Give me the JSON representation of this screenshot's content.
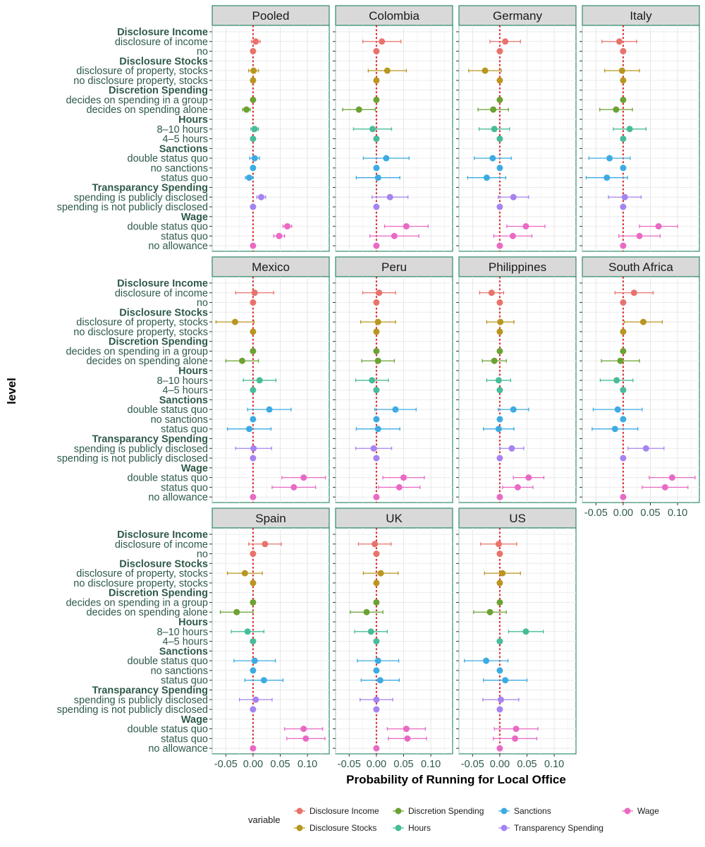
{
  "chart_data": {
    "type": "coefficient-dot-plot-faceted",
    "xlabel": "Probability of Running for Local Office",
    "ylabel": "level",
    "xlim": [
      -0.075,
      0.14
    ],
    "xticks": [
      -0.05,
      0.0,
      0.05,
      0.1
    ],
    "xtick_labels": [
      "-0.05",
      "0.00",
      "0.05",
      "0.10"
    ],
    "reference_line": 0,
    "legend_title": "variable",
    "groups": [
      {
        "name": "Disclosure Income",
        "color": "#E8736C",
        "levels": [
          "disclosure of income",
          "no"
        ]
      },
      {
        "name": "Disclosure Stocks",
        "color": "#B8961F",
        "levels": [
          "disclosure of property, stocks",
          "no disclosure property, stocks"
        ]
      },
      {
        "name": "Discretion Spending",
        "color": "#6BA233",
        "levels": [
          "decides on spending in a group",
          "decides on spending alone"
        ]
      },
      {
        "name": "Hours",
        "color": "#48BC99",
        "levels": [
          "8–10 hours",
          "4–5 hours"
        ]
      },
      {
        "name": "Sanctions",
        "color": "#3DABE2",
        "levels": [
          "double status quo",
          "no sanctions",
          "status quo"
        ]
      },
      {
        "name": "Transparancy Spending",
        "color": "#A683F0",
        "levels": [
          "spending is publicly disclosed",
          "spending is not publicly disclosed"
        ]
      },
      {
        "name": "Wage",
        "color": "#E96AC4",
        "levels": [
          "double status quo",
          "status quo",
          "no allowance"
        ]
      }
    ],
    "legend_labels": [
      "Disclosure Income",
      "Disclosure Stocks",
      "Discretion Spending",
      "Hours",
      "Sanctions",
      "Transparency Spending",
      "Wage"
    ],
    "facets": [
      {
        "name": "Pooled",
        "est": [
          [
            0.005,
            0
          ],
          [
            0.001,
            0
          ],
          [
            0,
            -0.012
          ],
          [
            0.003,
            0
          ],
          [
            0.003,
            0,
            -0.007
          ],
          [
            0.015,
            0
          ],
          [
            0.063,
            0.048,
            0
          ]
        ],
        "err": [
          [
            0.008,
            0
          ],
          [
            0.009,
            0
          ],
          [
            0,
            0.007
          ],
          [
            0.007,
            0
          ],
          [
            0.009,
            0,
            0.007
          ],
          [
            0.008,
            0
          ],
          [
            0.008,
            0.01,
            0
          ]
        ]
      },
      {
        "name": "Colombia",
        "est": [
          [
            0.01,
            0
          ],
          [
            0.02,
            0
          ],
          [
            0,
            -0.032
          ],
          [
            -0.007,
            0
          ],
          [
            0.018,
            0,
            0.003
          ],
          [
            0.025,
            0
          ],
          [
            0.055,
            0.033,
            0
          ]
        ],
        "err": [
          [
            0.035,
            0
          ],
          [
            0.035,
            0
          ],
          [
            0,
            0.03
          ],
          [
            0.035,
            0
          ],
          [
            0.042,
            0,
            0.04
          ],
          [
            0.033,
            0
          ],
          [
            0.04,
            0.045,
            0
          ]
        ]
      },
      {
        "name": "Germany",
        "est": [
          [
            0.01,
            0
          ],
          [
            -0.027,
            0
          ],
          [
            0,
            -0.012
          ],
          [
            -0.01,
            0
          ],
          [
            -0.013,
            0,
            -0.024
          ],
          [
            0.025,
            0
          ],
          [
            0.048,
            0.024,
            0
          ]
        ],
        "err": [
          [
            0.028,
            0
          ],
          [
            0.03,
            0
          ],
          [
            0,
            0.028
          ],
          [
            0.028,
            0
          ],
          [
            0.034,
            0,
            0.035
          ],
          [
            0.028,
            0
          ],
          [
            0.035,
            0.035,
            0
          ]
        ]
      },
      {
        "name": "Italy",
        "est": [
          [
            -0.007,
            0
          ],
          [
            -0.002,
            0
          ],
          [
            0,
            -0.013
          ],
          [
            0.012,
            0
          ],
          [
            -0.025,
            0,
            -0.03
          ],
          [
            0.003,
            0
          ],
          [
            0.065,
            0.03,
            0
          ]
        ],
        "err": [
          [
            0.032,
            0
          ],
          [
            0.032,
            0
          ],
          [
            0,
            0.03
          ],
          [
            0.03,
            0
          ],
          [
            0.038,
            0,
            0.038
          ],
          [
            0.03,
            0
          ],
          [
            0.035,
            0.038,
            0
          ]
        ]
      },
      {
        "name": "Mexico",
        "est": [
          [
            0.003,
            0
          ],
          [
            -0.033,
            0
          ],
          [
            0,
            -0.02
          ],
          [
            0.012,
            0
          ],
          [
            0.03,
            0,
            -0.007
          ],
          [
            0.001,
            0
          ],
          [
            0.093,
            0.075,
            0
          ]
        ],
        "err": [
          [
            0.035,
            0
          ],
          [
            0.035,
            0
          ],
          [
            0,
            0.03
          ],
          [
            0.03,
            0
          ],
          [
            0.04,
            0,
            0.04
          ],
          [
            0.033,
            0
          ],
          [
            0.04,
            0.04,
            0
          ]
        ]
      },
      {
        "name": "Peru",
        "est": [
          [
            0.005,
            0
          ],
          [
            0.003,
            0
          ],
          [
            0,
            0.003
          ],
          [
            -0.008,
            0
          ],
          [
            0.035,
            0,
            0.003
          ],
          [
            -0.005,
            0
          ],
          [
            0.05,
            0.042,
            0
          ]
        ],
        "err": [
          [
            0.03,
            0
          ],
          [
            0.032,
            0
          ],
          [
            0,
            0.03
          ],
          [
            0.03,
            0
          ],
          [
            0.038,
            0,
            0.04
          ],
          [
            0.033,
            0
          ],
          [
            0.038,
            0.038,
            0
          ]
        ]
      },
      {
        "name": "Philippines",
        "est": [
          [
            -0.015,
            0
          ],
          [
            0.001,
            0
          ],
          [
            0,
            -0.01
          ],
          [
            -0.002,
            0
          ],
          [
            0.025,
            0,
            -0.002
          ],
          [
            0.022,
            0
          ],
          [
            0.053,
            0.033,
            0
          ]
        ],
        "err": [
          [
            0.022,
            0
          ],
          [
            0.025,
            0
          ],
          [
            0,
            0.022
          ],
          [
            0.022,
            0
          ],
          [
            0.028,
            0,
            0.028
          ],
          [
            0.022,
            0
          ],
          [
            0.028,
            0.028,
            0
          ]
        ]
      },
      {
        "name": "South Africa",
        "est": [
          [
            0.02,
            0
          ],
          [
            0.037,
            0
          ],
          [
            0,
            -0.005
          ],
          [
            -0.012,
            0
          ],
          [
            -0.01,
            0,
            -0.015
          ],
          [
            0.042,
            0
          ],
          [
            0.09,
            0.077,
            0
          ]
        ],
        "err": [
          [
            0.035,
            0
          ],
          [
            0.035,
            0
          ],
          [
            0,
            0.035
          ],
          [
            0.03,
            0
          ],
          [
            0.045,
            0,
            0.042
          ],
          [
            0.033,
            0
          ],
          [
            0.042,
            0.042,
            0
          ]
        ]
      },
      {
        "name": "Spain",
        "est": [
          [
            0.022,
            0
          ],
          [
            -0.015,
            0
          ],
          [
            0,
            -0.03
          ],
          [
            -0.01,
            0
          ],
          [
            0.003,
            0,
            0.02
          ],
          [
            0.005,
            0
          ],
          [
            0.093,
            0.097,
            0
          ]
        ],
        "err": [
          [
            0.03,
            0
          ],
          [
            0.032,
            0
          ],
          [
            0,
            0.03
          ],
          [
            0.03,
            0
          ],
          [
            0.038,
            0,
            0.035
          ],
          [
            0.03,
            0
          ],
          [
            0.035,
            0.035,
            0
          ]
        ]
      },
      {
        "name": "UK",
        "est": [
          [
            -0.003,
            0
          ],
          [
            0.008,
            0
          ],
          [
            0,
            -0.018
          ],
          [
            -0.01,
            0
          ],
          [
            0.003,
            0,
            0.007
          ],
          [
            0,
            0
          ],
          [
            0.055,
            0.057,
            0
          ]
        ],
        "err": [
          [
            0.03,
            0
          ],
          [
            0.032,
            0
          ],
          [
            0,
            0.03
          ],
          [
            0.03,
            0
          ],
          [
            0.038,
            0,
            0.035
          ],
          [
            0.03,
            0
          ],
          [
            0.035,
            0.035,
            0
          ]
        ]
      },
      {
        "name": "US",
        "est": [
          [
            -0.002,
            0
          ],
          [
            0.005,
            0
          ],
          [
            0,
            -0.018
          ],
          [
            0.048,
            0
          ],
          [
            -0.025,
            0,
            0.01
          ],
          [
            0.002,
            0
          ],
          [
            0.03,
            0.028,
            0
          ]
        ],
        "err": [
          [
            0.033,
            0
          ],
          [
            0.033,
            0
          ],
          [
            0,
            0.03
          ],
          [
            0.032,
            0
          ],
          [
            0.04,
            0,
            0.04
          ],
          [
            0.033,
            0
          ],
          [
            0.04,
            0.04,
            0
          ]
        ]
      }
    ]
  }
}
